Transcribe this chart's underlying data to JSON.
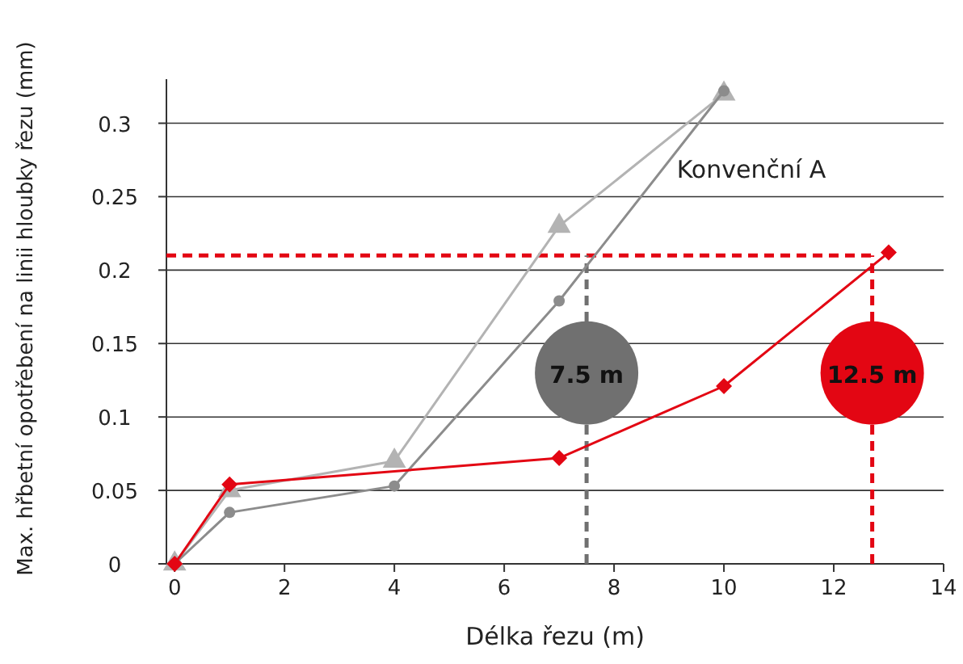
{
  "chart_data": {
    "type": "line",
    "xlabel": "Délka řezu (m)",
    "ylabel": "Max. hřbetní opotřebení na linii hloubky řezu (mm)",
    "xlim": [
      -0.15,
      14
    ],
    "xticks": [
      0,
      2,
      4,
      6,
      8,
      10,
      12,
      14
    ],
    "ylim": [
      0,
      0.33
    ],
    "yticks": [
      0,
      0.05,
      0.1,
      0.15,
      0.2,
      0.25,
      0.3
    ],
    "grid": "y",
    "series": [
      {
        "color": "#b3b3b3",
        "marker": "triangle",
        "x": [
          0,
          1,
          4,
          7,
          10
        ],
        "values": [
          0,
          0.05,
          0.07,
          0.23,
          0.32
        ]
      },
      {
        "color": "#8c8c8c",
        "marker": "circle",
        "x": [
          0,
          1,
          4,
          7,
          10
        ],
        "values": [
          0,
          0.035,
          0.053,
          0.179,
          0.322
        ]
      },
      {
        "color": "#e30613",
        "marker": "diamond",
        "x": [
          0,
          1,
          7,
          10,
          13
        ],
        "values": [
          0,
          0.054,
          0.072,
          0.121,
          0.212
        ]
      }
    ],
    "ref_lines": [
      {
        "axis": "y",
        "value": 0.21,
        "color": "#e30613",
        "line_style": "dashed"
      },
      {
        "axis": "x",
        "value": 7.5,
        "label": "7.5 m",
        "color": "#707070",
        "line_style": "dashed"
      },
      {
        "axis": "x",
        "value": 12.7,
        "label": "12.5 m",
        "color": "#e30613",
        "line_style": "dashed"
      }
    ],
    "annotations": [
      "Konvenční A"
    ]
  }
}
